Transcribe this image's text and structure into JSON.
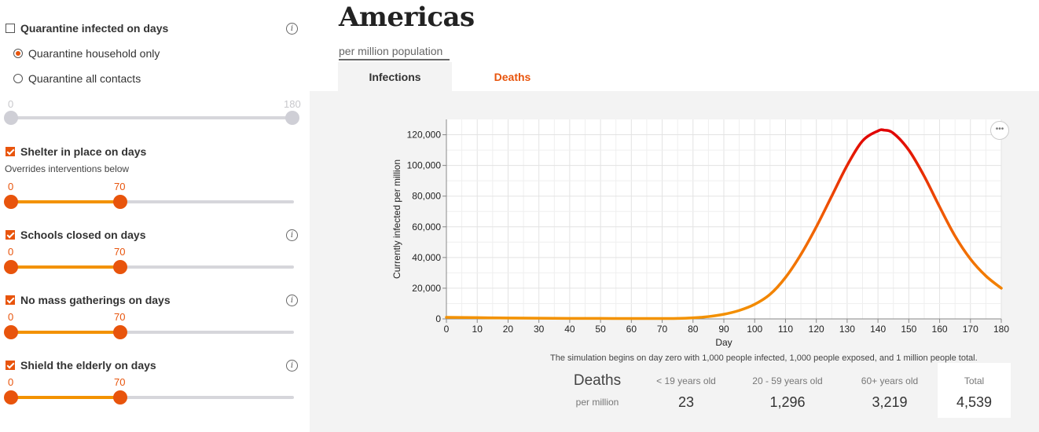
{
  "quarantine": {
    "label": "Quarantine infected on days",
    "checked": false,
    "options": [
      {
        "label": "Quarantine household only",
        "selected": true
      },
      {
        "label": "Quarantine all contacts",
        "selected": false
      }
    ],
    "slider": {
      "min": "0",
      "max": "180"
    }
  },
  "interventions": [
    {
      "label": "Shelter in place on days",
      "note": "Overrides interventions below",
      "start": "0",
      "end": "70",
      "checked": true,
      "info": false
    },
    {
      "label": "Schools closed on days",
      "start": "0",
      "end": "70",
      "checked": true,
      "info": true
    },
    {
      "label": "No mass gatherings on days",
      "start": "0",
      "end": "70",
      "checked": true,
      "info": true
    },
    {
      "label": "Shield the elderly on days",
      "start": "0",
      "end": "70",
      "checked": true,
      "info": true
    }
  ],
  "info_glyph": "i",
  "region": {
    "title": "Americas",
    "subtitle": "per million population"
  },
  "tabs": [
    {
      "label": "Infections",
      "active": true
    },
    {
      "label": "Deaths",
      "active": false
    }
  ],
  "colors": {
    "accent": "#e8540c",
    "orange": "#f39200",
    "peak": "#e00000",
    "panel": "#f3f3f3"
  },
  "menu_glyph": "•••",
  "chart_data": {
    "type": "line",
    "xlabel": "Day",
    "ylabel": "Currently infected per million",
    "xlim": [
      0,
      180
    ],
    "ylim": [
      0,
      130000
    ],
    "x_ticks": [
      "0",
      "10",
      "20",
      "30",
      "40",
      "50",
      "60",
      "70",
      "80",
      "90",
      "100",
      "110",
      "120",
      "130",
      "140",
      "150",
      "160",
      "170",
      "180"
    ],
    "y_ticks": [
      "0",
      "20,000",
      "40,000",
      "60,000",
      "80,000",
      "100,000",
      "120,000"
    ],
    "grid": true,
    "series": [
      {
        "x": [
          0,
          10,
          20,
          30,
          40,
          50,
          60,
          70,
          75,
          80,
          85,
          90,
          95,
          100,
          105,
          110,
          115,
          120,
          125,
          130,
          135,
          140,
          142,
          145,
          150,
          155,
          160,
          165,
          170,
          175,
          180
        ],
        "y": [
          1000,
          800,
          600,
          450,
          350,
          300,
          250,
          250,
          300,
          700,
          1500,
          3000,
          5500,
          9500,
          16000,
          27000,
          42000,
          60000,
          80000,
          100000,
          116000,
          122500,
          123000,
          121000,
          110000,
          93000,
          73000,
          54000,
          39000,
          28000,
          20000
        ]
      }
    ]
  },
  "caption": "The simulation begins on day zero with 1,000 people infected, 1,000 people exposed, and 1 million people total.",
  "deaths_table": {
    "title": "Deaths",
    "subtitle": "per million",
    "columns": [
      {
        "header": "< 19 years old",
        "value": "23"
      },
      {
        "header": "20 - 59 years old",
        "value": "1,296"
      },
      {
        "header": "60+ years old",
        "value": "3,219"
      },
      {
        "header": "Total",
        "value": "4,539"
      }
    ]
  }
}
